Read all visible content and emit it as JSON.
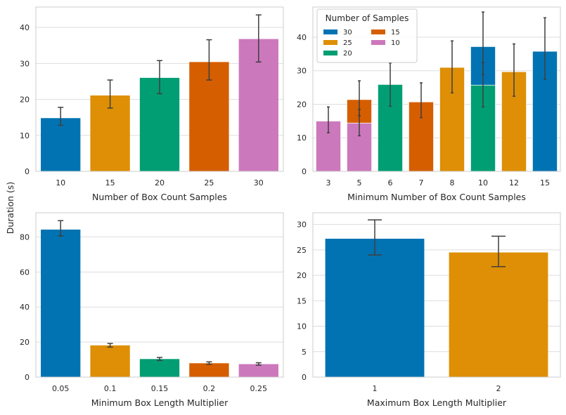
{
  "shared_ylabel": "Duration (s)",
  "colors": {
    "palette": [
      "#0173b2",
      "#de8f05",
      "#029e73",
      "#d55e00",
      "#cc78bc"
    ],
    "grid": "#dddddd",
    "frame": "#cccccc",
    "errorbar": "#3f3f3f"
  },
  "chart_data": [
    {
      "type": "bar",
      "xlabel": "Number of Box Count Samples",
      "ylabel": "Duration (s)",
      "categories": [
        "10",
        "15",
        "20",
        "25",
        "30"
      ],
      "values": [
        14.8,
        21.1,
        26.0,
        30.4,
        36.8
      ],
      "errors": [
        [
          12.8,
          17.8
        ],
        [
          17.6,
          25.4
        ],
        [
          21.6,
          30.8
        ],
        [
          25.4,
          36.6
        ],
        [
          30.4,
          43.5
        ]
      ],
      "ylim": [
        0,
        45.7
      ],
      "yticks": [
        0,
        10,
        20,
        30,
        40
      ],
      "grid": true
    },
    {
      "type": "bar",
      "xlabel": "Minimum Number of Box Count Samples",
      "ylabel": "",
      "categories": [
        "3",
        "5",
        "6",
        "7",
        "8",
        "10",
        "12",
        "15"
      ],
      "legend": {
        "title": "Number of Samples",
        "entries": [
          "30",
          "25",
          "20",
          "15",
          "10"
        ],
        "placement": "top-left"
      },
      "bars": [
        {
          "category": "3",
          "series": "10",
          "value": 15.0,
          "error": [
            11.5,
            19.2
          ]
        },
        {
          "category": "5",
          "series": "15",
          "value": 21.4,
          "error": [
            16.6,
            27.0
          ]
        },
        {
          "category": "5",
          "series": "10",
          "value": 14.4,
          "error": [
            10.6,
            18.5
          ]
        },
        {
          "category": "6",
          "series": "20",
          "value": 25.9,
          "error": [
            19.4,
            32.3
          ]
        },
        {
          "category": "7",
          "series": "15",
          "value": 20.7,
          "error": [
            16.0,
            26.4
          ]
        },
        {
          "category": "8",
          "series": "25",
          "value": 31.0,
          "error": [
            23.4,
            38.9
          ]
        },
        {
          "category": "10",
          "series": "30",
          "value": 37.2,
          "error": [
            28.8,
            47.5
          ]
        },
        {
          "category": "10",
          "series": "20",
          "value": 25.7,
          "error": [
            19.2,
            32.5
          ]
        },
        {
          "category": "12",
          "series": "25",
          "value": 29.7,
          "error": [
            22.4,
            38.0
          ]
        },
        {
          "category": "15",
          "series": "30",
          "value": 35.8,
          "error": [
            27.4,
            45.8
          ]
        }
      ],
      "ylim": [
        0,
        49.0
      ],
      "yticks": [
        0,
        10,
        20,
        30,
        40
      ],
      "grid": true
    },
    {
      "type": "bar",
      "xlabel": "Minimum Box Length Multiplier",
      "ylabel": "Duration (s)",
      "categories": [
        "0.05",
        "0.1",
        "0.15",
        "0.2",
        "0.25"
      ],
      "values": [
        84.2,
        18.1,
        10.3,
        7.9,
        7.4
      ],
      "errors": [
        [
          80.6,
          89.3
        ],
        [
          17.1,
          19.2
        ],
        [
          9.5,
          11.2
        ],
        [
          7.3,
          8.7
        ],
        [
          6.8,
          8.2
        ]
      ],
      "ylim": [
        0,
        93.8
      ],
      "yticks": [
        0,
        20,
        40,
        60,
        80
      ],
      "grid": true
    },
    {
      "type": "bar",
      "xlabel": "Maximum Box Length Multiplier",
      "ylabel": "",
      "categories": [
        "1",
        "2"
      ],
      "values": [
        27.2,
        24.5
      ],
      "errors": [
        [
          24.0,
          30.9
        ],
        [
          21.7,
          27.7
        ]
      ],
      "ylim": [
        0,
        32.3
      ],
      "yticks": [
        0,
        5,
        10,
        15,
        20,
        25,
        30
      ],
      "grid": true
    }
  ]
}
